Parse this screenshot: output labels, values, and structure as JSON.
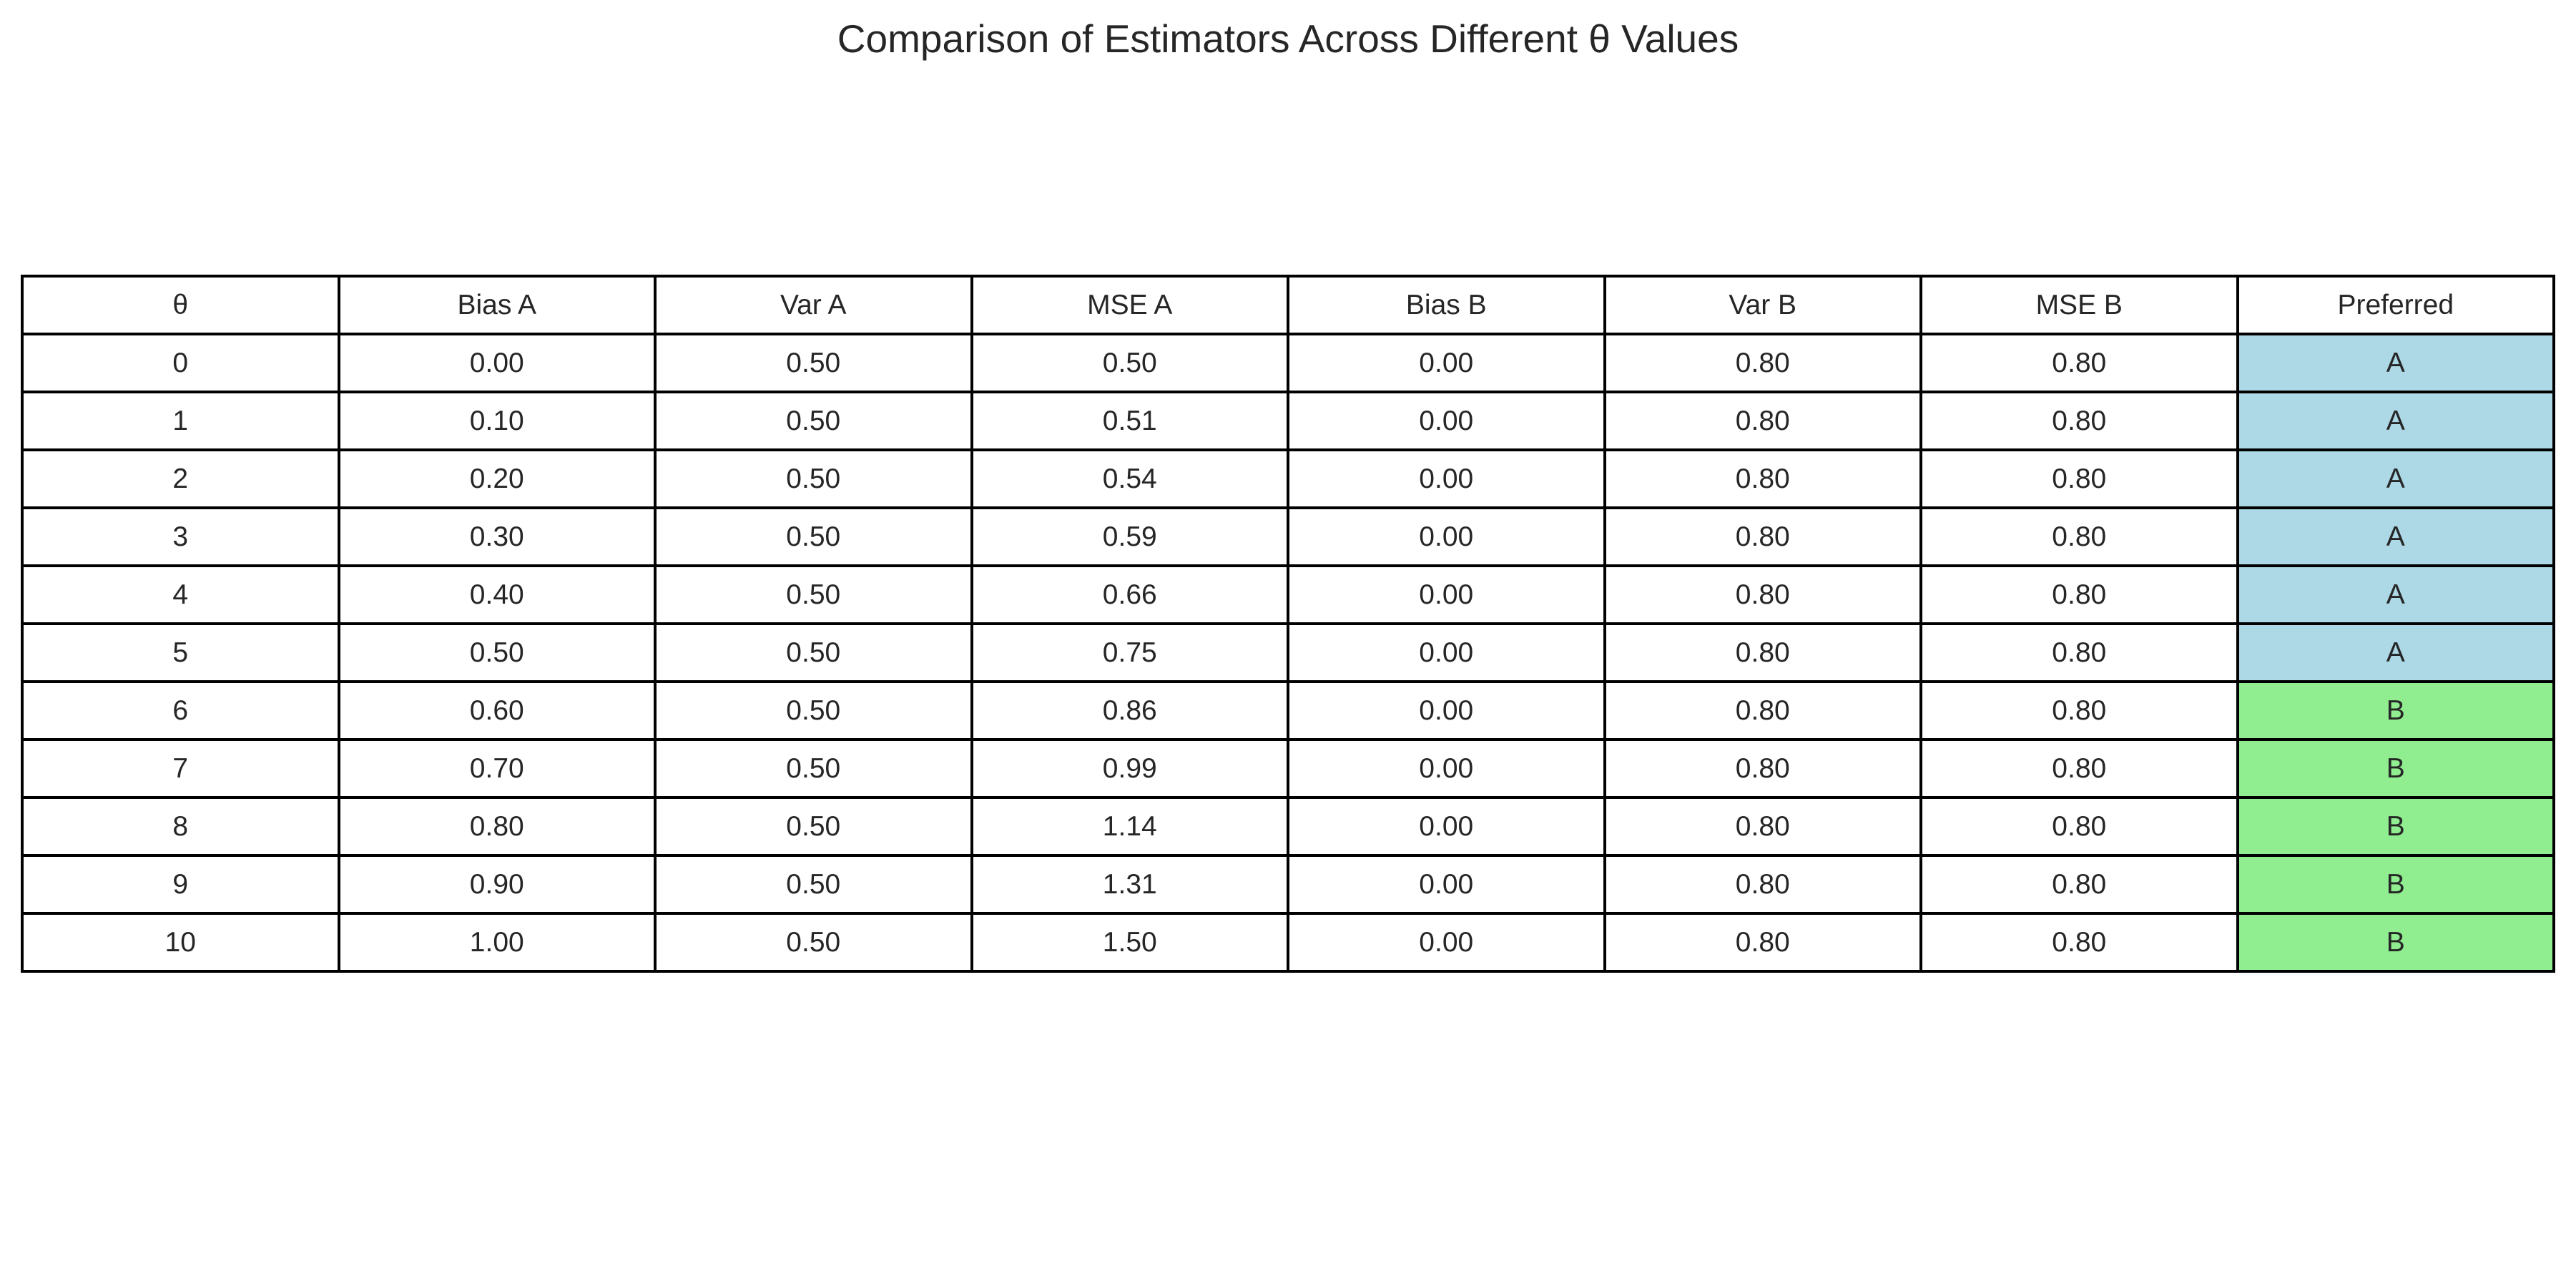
{
  "chart_data": {
    "type": "table",
    "title": "Comparison of Estimators Across Different θ Values",
    "columns": [
      "θ",
      "Bias A",
      "Var A",
      "MSE A",
      "Bias B",
      "Var B",
      "MSE B",
      "Preferred"
    ],
    "rows": [
      [
        "0",
        "0.00",
        "0.50",
        "0.50",
        "0.00",
        "0.80",
        "0.80",
        "A"
      ],
      [
        "1",
        "0.10",
        "0.50",
        "0.51",
        "0.00",
        "0.80",
        "0.80",
        "A"
      ],
      [
        "2",
        "0.20",
        "0.50",
        "0.54",
        "0.00",
        "0.80",
        "0.80",
        "A"
      ],
      [
        "3",
        "0.30",
        "0.50",
        "0.59",
        "0.00",
        "0.80",
        "0.80",
        "A"
      ],
      [
        "4",
        "0.40",
        "0.50",
        "0.66",
        "0.00",
        "0.80",
        "0.80",
        "A"
      ],
      [
        "5",
        "0.50",
        "0.50",
        "0.75",
        "0.00",
        "0.80",
        "0.80",
        "A"
      ],
      [
        "6",
        "0.60",
        "0.50",
        "0.86",
        "0.00",
        "0.80",
        "0.80",
        "B"
      ],
      [
        "7",
        "0.70",
        "0.50",
        "0.99",
        "0.00",
        "0.80",
        "0.80",
        "B"
      ],
      [
        "8",
        "0.80",
        "0.50",
        "1.14",
        "0.00",
        "0.80",
        "0.80",
        "B"
      ],
      [
        "9",
        "0.90",
        "0.50",
        "1.31",
        "0.00",
        "0.80",
        "0.80",
        "B"
      ],
      [
        "10",
        "1.00",
        "0.50",
        "1.50",
        "0.00",
        "0.80",
        "0.80",
        "B"
      ]
    ],
    "preferred_colors": {
      "A": "#add8e6",
      "B": "#90ee90"
    }
  }
}
